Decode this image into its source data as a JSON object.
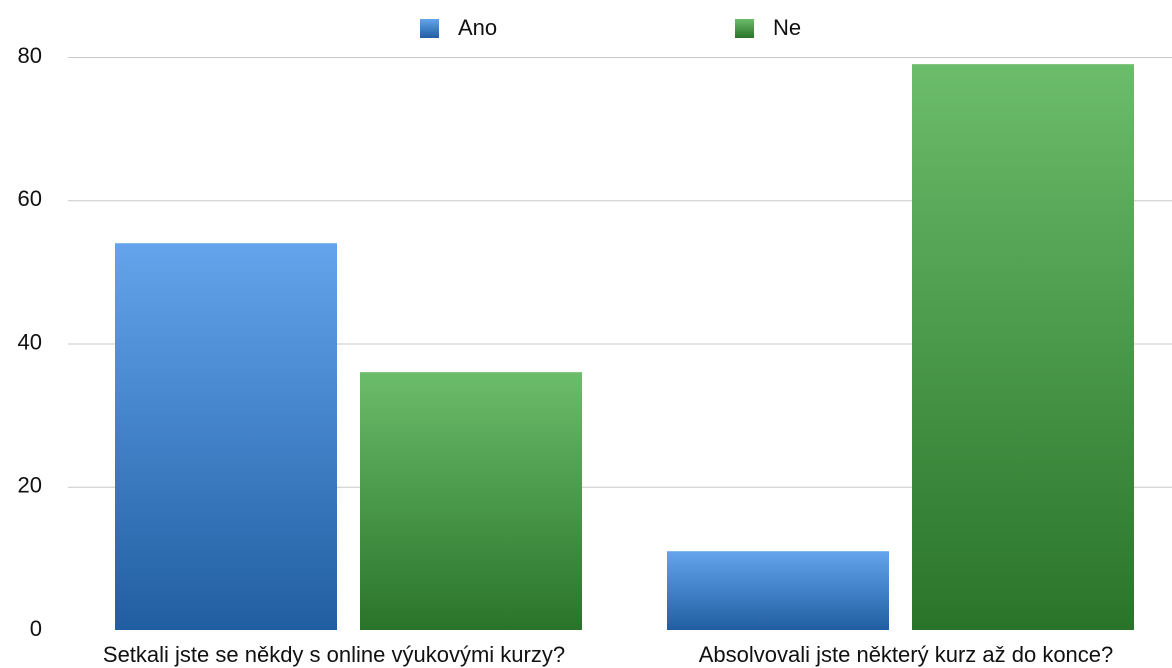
{
  "chart_data": {
    "type": "bar",
    "categories": [
      "Setkali jste se někdy s online výukovými kurzy?",
      "Absolvovali jste některý kurz až do konce?"
    ],
    "series": [
      {
        "name": "Ano",
        "color": "#2f86e6",
        "values": [
          54,
          11
        ]
      },
      {
        "name": "Ne",
        "color": "#3aa63a",
        "values": [
          36,
          79
        ]
      }
    ],
    "ylim": [
      0,
      80
    ],
    "yticks": [
      0,
      20,
      40,
      60,
      80
    ],
    "grid": true,
    "legend": "top"
  }
}
